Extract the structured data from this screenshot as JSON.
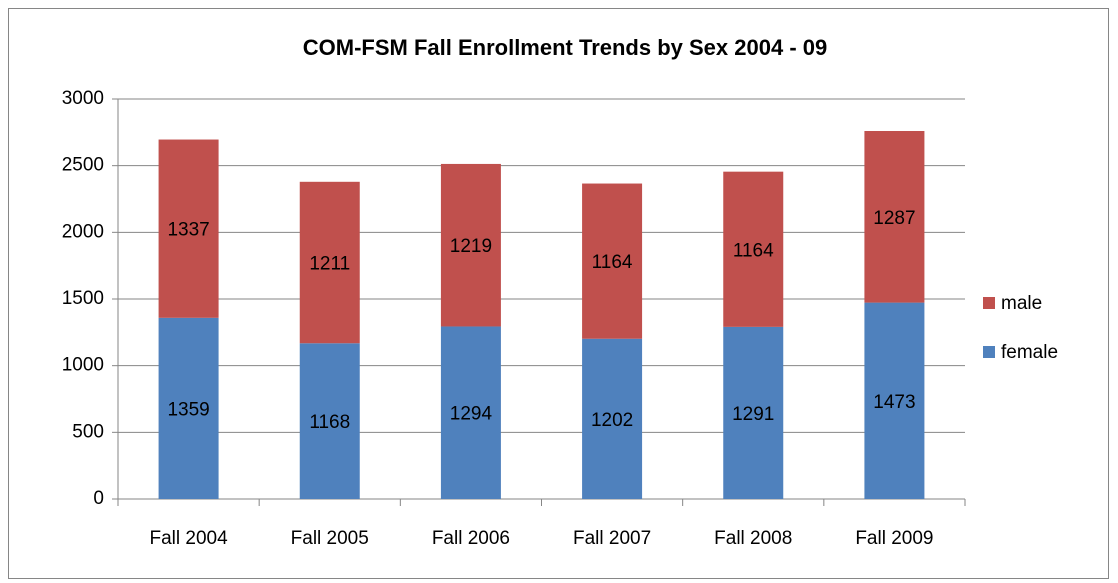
{
  "chart_data": {
    "type": "stacked_bar",
    "title": "COM-FSM Fall Enrollment Trends by Sex 2004 - 09",
    "categories": [
      "Fall 2004",
      "Fall 2005",
      "Fall 2006",
      "Fall 2007",
      "Fall 2008",
      "Fall 2009"
    ],
    "series": [
      {
        "name": "female",
        "color": "#4f81bd",
        "values": [
          1359,
          1168,
          1294,
          1202,
          1291,
          1473
        ]
      },
      {
        "name": "male",
        "color": "#c0504d",
        "values": [
          1337,
          1211,
          1219,
          1164,
          1164,
          1287
        ]
      }
    ],
    "ylim": [
      0,
      3000
    ],
    "yticks": [
      0,
      500,
      1000,
      1500,
      2000,
      2500,
      3000
    ],
    "grid": true,
    "legend": "right"
  }
}
